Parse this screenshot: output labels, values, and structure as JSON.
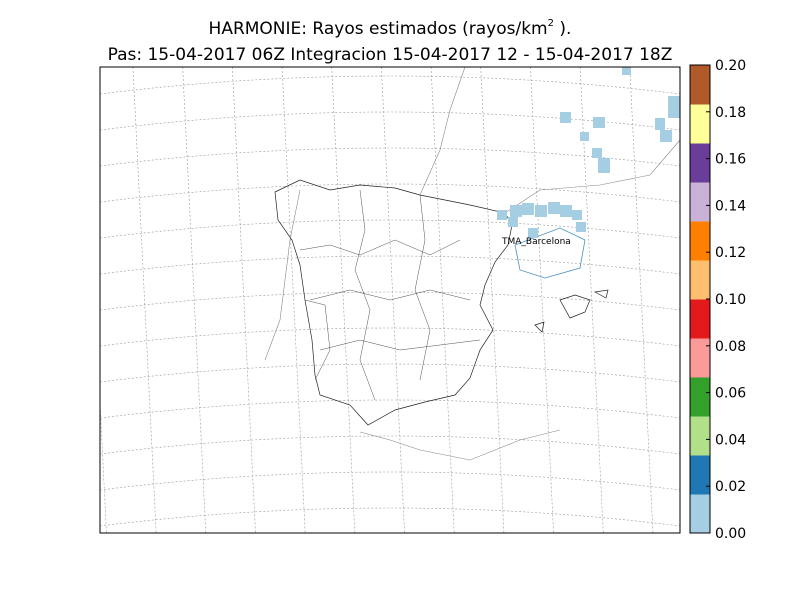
{
  "map": {
    "title": {
      "main": "HARMONIE: Rayos estimados  (rayos/km",
      "sup": "2",
      "end": " )."
    },
    "subtitle": "Pas: 15-04-2017 06Z Integracion 15-04-2017 12 - 15-04-2017 18Z",
    "annotation": "TMA_Barcelona",
    "colorbar": {
      "lim": [
        0,
        0.2
      ],
      "ticks": [
        {
          "value": 0,
          "label": "0.00"
        },
        {
          "value": 0.02,
          "label": "0.02"
        },
        {
          "value": 0.04,
          "label": "0.04"
        },
        {
          "value": 0.06,
          "label": "0.06"
        },
        {
          "value": 0.08,
          "label": "0.08"
        },
        {
          "value": 0.1,
          "label": "0.10"
        },
        {
          "value": 0.12,
          "label": "0.12"
        },
        {
          "value": 0.14,
          "label": "0.14"
        },
        {
          "value": 0.16,
          "label": "0.16"
        },
        {
          "value": 0.18,
          "label": "0.18"
        },
        {
          "value": 0.2,
          "label": "0.20"
        }
      ],
      "colors": [
        "#a6cee3",
        "#1f78b4",
        "#b2df8a",
        "#33a02c",
        "#fb9a99",
        "#e31a1c",
        "#fdbf6f",
        "#ff7f00",
        "#cab2d6",
        "#6a3d9a",
        "#ffff99",
        "#b15928"
      ]
    }
  }
}
